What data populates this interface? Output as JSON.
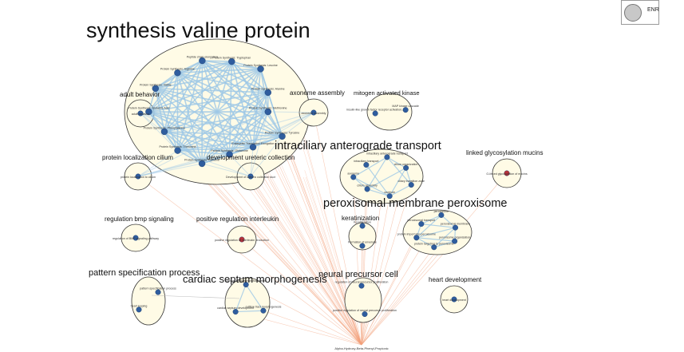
{
  "legend": {
    "label": "ENR"
  },
  "colors": {
    "cluster_fill": "#fffbe6",
    "cluster_stroke": "#333333",
    "node": "#2f5d9e",
    "node_highlight": "#b8323a",
    "edge_similarity": "#9ec8e6",
    "edge_signature": "#f3a07a"
  },
  "clusters": [
    {
      "id": "synthesis",
      "label": "synthesis valine protein",
      "size": "xlarge",
      "nodes": [
        "Protein Synthesis: Methionine",
        "Protein Synthesis: Tyrosine",
        "Eukaryotic Translation Elongation",
        "Protein Synthesis: Glutamine",
        "Protein Synthesis: Cysteine",
        "Protein Synthesis: Threonine",
        "Protein Synthesis: Phenylalanine",
        "Protein Synthesis: Glutamic Acid",
        "Protein Synthesis: Valine",
        "Protein Synthesis: Arginine",
        "Peptide chain elongation",
        "Protein Synthesis: Tryptophan",
        "Protein Synthesis: Leucine",
        "Protein Synthesis: Alanine"
      ]
    },
    {
      "id": "adult",
      "label": "adult behavior",
      "size": "small",
      "nodes": [
        "adult behavior"
      ]
    },
    {
      "id": "axoneme",
      "label": "axoneme assembly",
      "size": "small",
      "nodes": [
        "axoneme assembly"
      ]
    },
    {
      "id": "mapk",
      "label": "mitogen activated kinase",
      "size": "small",
      "nodes": [
        "insulin-like growth factor receptor activation...",
        "MAP kinase cascade"
      ]
    },
    {
      "id": "ift",
      "label": "intraciliary anterograde transport",
      "size": "large",
      "nodes": [
        "intraciliary transport",
        "intraciliary anterograde transport",
        "cilium organization",
        "ciliary transition zone",
        "centriole",
        "cilium assembly",
        "axoneme"
      ]
    },
    {
      "id": "glyco",
      "label": "linked glycosylation mucins",
      "size": "small",
      "nodes": [
        "O-linked glycosylation of mucins"
      ]
    },
    {
      "id": "localization",
      "label": "protein localization cilium",
      "size": "small",
      "nodes": [
        "protein localization to cilium"
      ]
    },
    {
      "id": "ureteric",
      "label": "development ureteric collection",
      "size": "small",
      "nodes": [
        "Development of ureteric collection duct"
      ]
    },
    {
      "id": "perox",
      "label": "peroxisomal membrane peroxisome",
      "size": "large",
      "nodes": [
        "protein targeting to peroxisome",
        "protein import into peroxisome",
        "peroxisomal transport",
        "peroxisome",
        "peroxisomal membrane",
        "peroxisome organization"
      ]
    },
    {
      "id": "bmp",
      "label": "regulation bmp signaling",
      "size": "small",
      "nodes": [
        "regulation of BMP signaling pathway"
      ]
    },
    {
      "id": "interleukin",
      "label": "positive regulation interleukin",
      "size": "small",
      "nodes": [
        "positive regulation of interleukin production"
      ]
    },
    {
      "id": "kerat",
      "label": "keratinization",
      "size": "small",
      "nodes": [
        "Keratinization",
        "Formation of envelope"
      ]
    },
    {
      "id": "pattern",
      "label": "pattern specification process",
      "size": "medium",
      "nodes": [
        "pattern specification process",
        "heart looping"
      ]
    },
    {
      "id": "cardiac",
      "label": "cardiac septum morphogenesis",
      "size": "medium",
      "nodes": [
        "outflow tract morphogenesis",
        "cardiac septum development",
        "cardiac septum morphogenesis"
      ]
    },
    {
      "id": "neural",
      "label": "neural precursor cell",
      "size": "small",
      "nodes": [
        "positive regulation of neural precursor proliferation",
        "regulation of neural precursor proliferation"
      ]
    },
    {
      "id": "heart",
      "label": "heart development",
      "size": "small",
      "nodes": [
        "heart development"
      ]
    }
  ],
  "signature": {
    "label": "Alpha-Hydroxy-Beta-Phenyl-Propionic"
  }
}
